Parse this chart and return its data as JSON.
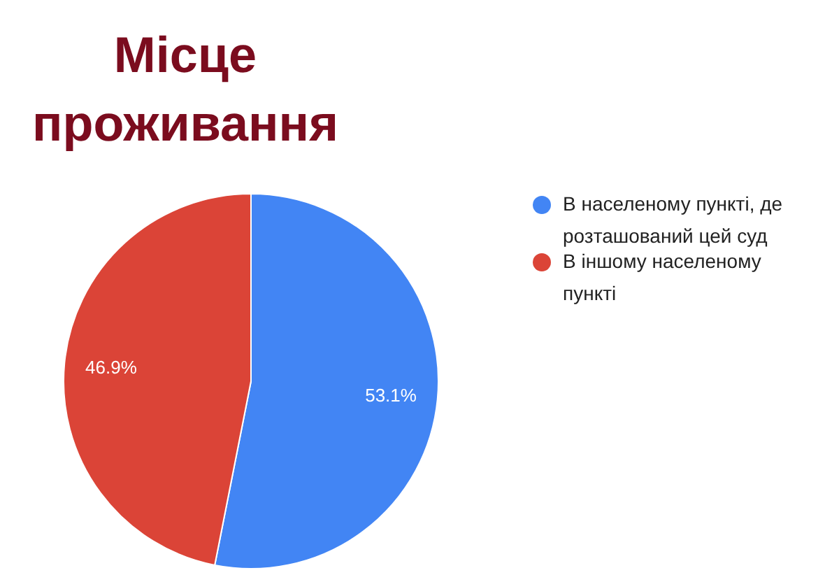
{
  "chart_data": {
    "type": "pie",
    "title": "Місце проживання",
    "categories": [
      "В населеному пункті, де розташований цей суд",
      "В іншому населеному пункті"
    ],
    "values": [
      53.1,
      46.9
    ],
    "colors": [
      "#4285f4",
      "#db4437"
    ],
    "value_labels": [
      "53.1%",
      "46.9%"
    ],
    "legend": "right"
  }
}
